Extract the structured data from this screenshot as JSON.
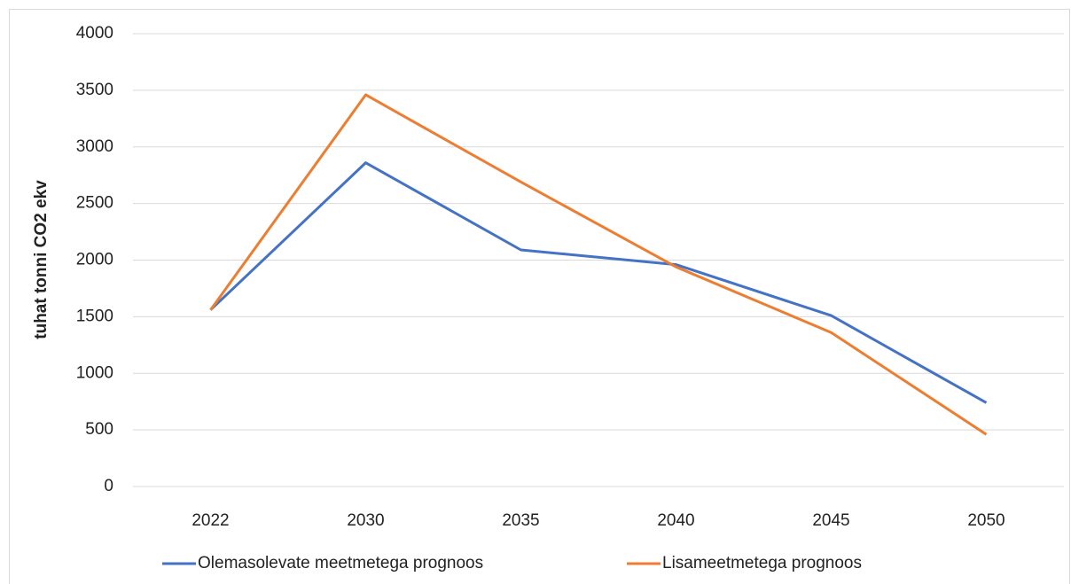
{
  "chart_data": {
    "type": "line",
    "y_label": "tuhat tonni CO2 ekv",
    "categories": [
      "2022",
      "2030",
      "2035",
      "2040",
      "2045",
      "2050"
    ],
    "series": [
      {
        "name": "Olemasolevate meetmetega prognoos",
        "color": "#4472c4",
        "values": [
          1560,
          2860,
          2090,
          1960,
          1510,
          740
        ]
      },
      {
        "name": "Lisameetmetega prognoos",
        "color": "#ed7d31",
        "values": [
          1560,
          3460,
          2690,
          1940,
          1360,
          460
        ]
      }
    ],
    "ylim": [
      0,
      4000
    ],
    "yticks": [
      0,
      500,
      1000,
      1500,
      2000,
      2500,
      3000,
      3500,
      4000
    ],
    "grid": true
  }
}
